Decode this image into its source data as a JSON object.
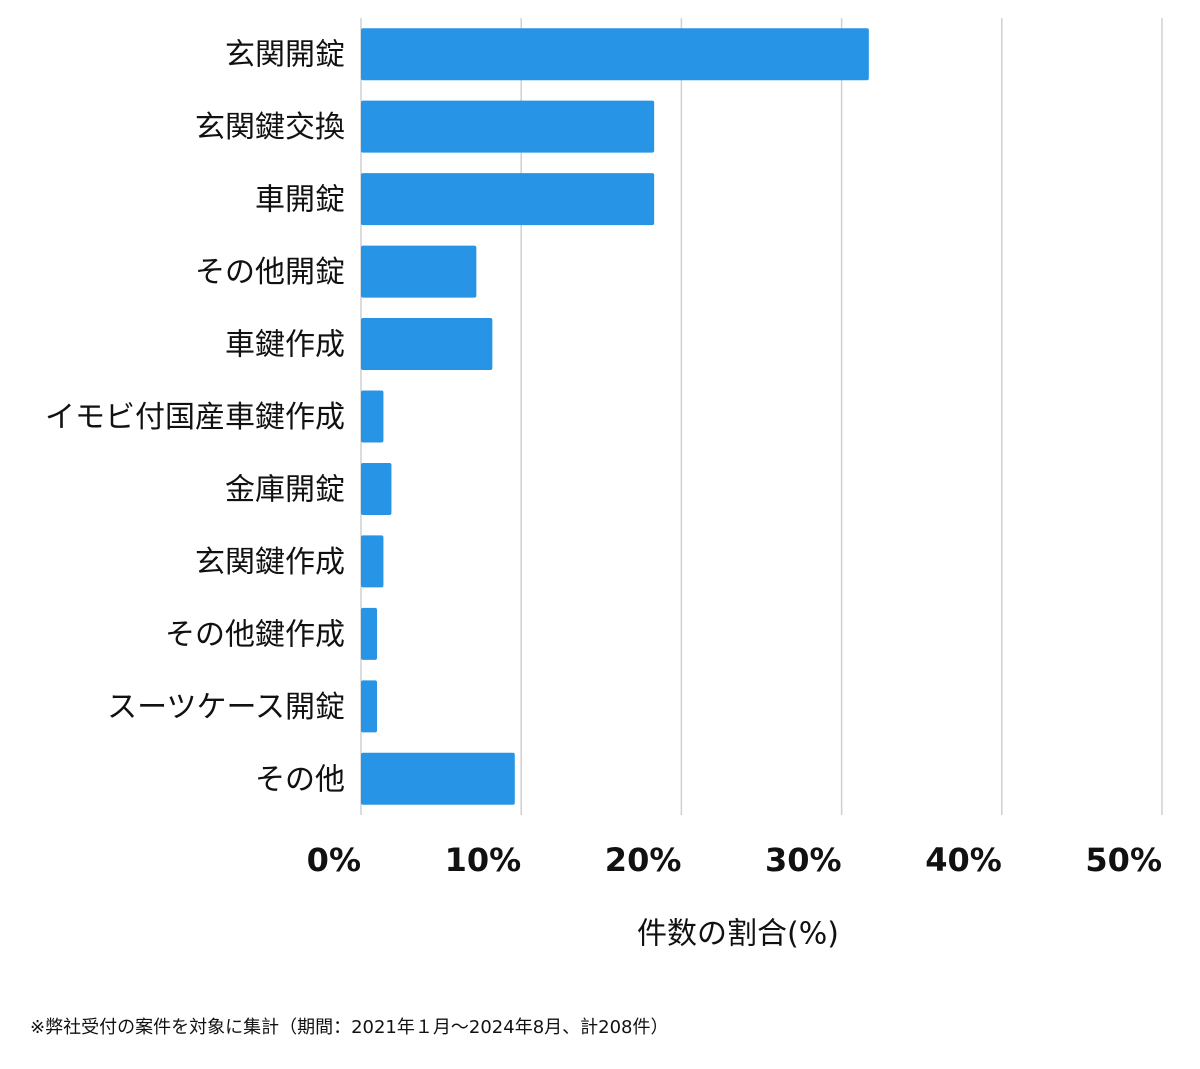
{
  "chart_data": {
    "type": "barh",
    "categories": [
      "玄関開錠",
      "玄関鍵交換",
      "車開錠",
      "その他開錠",
      "車鍵作成",
      "イモビ付国産車鍵作成",
      "金庫開錠",
      "玄関鍵作成",
      "その他鍵作成",
      "スーツケース開錠",
      "その他"
    ],
    "values": [
      31.7,
      18.3,
      18.3,
      7.2,
      8.2,
      1.4,
      1.9,
      1.4,
      1.0,
      1.0,
      9.6
    ],
    "color": "#2894e6",
    "xlim": [
      0,
      50
    ],
    "xticks": [
      {
        "value": 0,
        "label": "0%"
      },
      {
        "value": 10,
        "label": "10%"
      },
      {
        "value": 20,
        "label": "20%"
      },
      {
        "value": 30,
        "label": "30%"
      },
      {
        "value": 40,
        "label": "40%"
      },
      {
        "value": 50,
        "label": "50%"
      }
    ],
    "xlabel": "件数の割合(%)",
    "grid": true,
    "note": "※弊社受付の案件を対象に集計（期間：2021年１月～2024年8月、計208件）"
  }
}
